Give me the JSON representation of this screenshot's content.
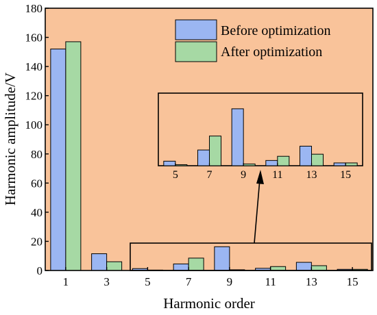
{
  "chart_data": {
    "type": "bar",
    "title": "",
    "xlabel": "Harmonic order",
    "ylabel": "Harmonic amplitude/V",
    "ylim": [
      0,
      180
    ],
    "yticks": [
      0,
      20,
      40,
      60,
      80,
      100,
      120,
      140,
      160,
      180
    ],
    "categories": [
      "1",
      "3",
      "5",
      "7",
      "9",
      "11",
      "13",
      "15"
    ],
    "series": [
      {
        "name": "Before optimization",
        "color": "#9bb6f2",
        "values": [
          152,
          11.5,
          1.3,
          4.5,
          16.3,
          1.5,
          5.6,
          0.8
        ]
      },
      {
        "name": "After optimization",
        "color": "#a6d9a4",
        "values": [
          157,
          6,
          0.3,
          8.5,
          0.5,
          2.7,
          3.3,
          0.8
        ]
      }
    ],
    "legend": {
      "placement": "top-right"
    },
    "background_color": "#f9c39a",
    "grid": false,
    "inset": {
      "categories": [
        "5",
        "7",
        "9",
        "11",
        "13",
        "15"
      ],
      "note": "magnified view of orders 5-15, arrow from highlighted region"
    }
  }
}
